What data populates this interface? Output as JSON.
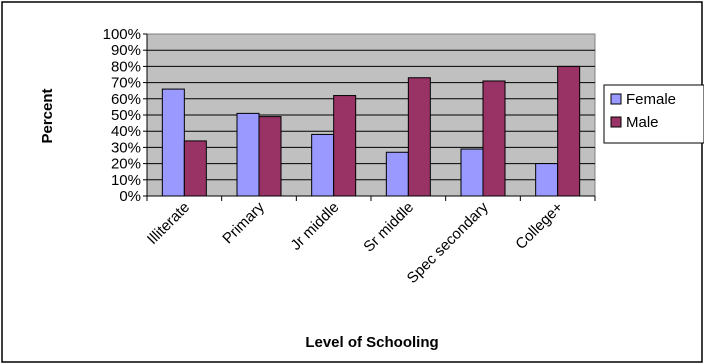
{
  "chart_data": {
    "type": "bar",
    "title": "",
    "xlabel": "Level of Schooling",
    "ylabel": "Percent",
    "ylim": [
      0,
      100
    ],
    "yticks": [
      "0%",
      "10%",
      "20%",
      "30%",
      "40%",
      "50%",
      "60%",
      "70%",
      "80%",
      "90%",
      "100%"
    ],
    "categories": [
      "Illiterate",
      "Primary",
      "Jr middle",
      "Sr middle",
      "Spec secondary",
      "College+"
    ],
    "series": [
      {
        "name": "Female",
        "color": "#9999ff",
        "values": [
          66,
          51,
          38,
          27,
          29,
          20
        ]
      },
      {
        "name": "Male",
        "color": "#993366",
        "values": [
          34,
          49,
          62,
          73,
          71,
          80
        ]
      }
    ],
    "grid": true,
    "plot_background": "#c0c0c0",
    "legend_position": "right"
  }
}
